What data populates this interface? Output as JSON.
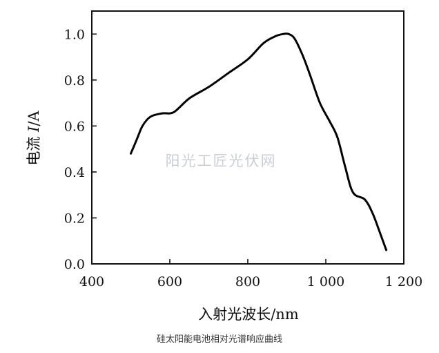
{
  "chart_data": {
    "type": "line",
    "xlabel_main": "入射光波长",
    "xlabel_unit": "/nm",
    "ylabel_main": "电流 ",
    "ylabel_var": "I",
    "ylabel_unit": "/A",
    "xlim": [
      400,
      1200
    ],
    "ylim": [
      0,
      1.1
    ],
    "x_ticks": [
      400,
      600,
      800,
      1000,
      1200
    ],
    "x_tick_labels": [
      "400",
      "600",
      "800",
      "1 000",
      "1 200"
    ],
    "y_ticks": [
      0.0,
      0.2,
      0.4,
      0.6,
      0.8,
      1.0
    ],
    "y_tick_labels": [
      "0.0",
      "0.2",
      "0.4",
      "0.6",
      "0.8",
      "1.0"
    ],
    "grid": false,
    "series": [
      {
        "color": "#000000",
        "points": [
          [
            500,
            0.48
          ],
          [
            515,
            0.54
          ],
          [
            530,
            0.6
          ],
          [
            550,
            0.64
          ],
          [
            580,
            0.655
          ],
          [
            610,
            0.66
          ],
          [
            650,
            0.72
          ],
          [
            700,
            0.77
          ],
          [
            750,
            0.83
          ],
          [
            800,
            0.89
          ],
          [
            840,
            0.96
          ],
          [
            870,
            0.99
          ],
          [
            890,
            1.0
          ],
          [
            905,
            1.0
          ],
          [
            920,
            0.98
          ],
          [
            940,
            0.91
          ],
          [
            960,
            0.82
          ],
          [
            985,
            0.7
          ],
          [
            1010,
            0.62
          ],
          [
            1030,
            0.55
          ],
          [
            1050,
            0.42
          ],
          [
            1070,
            0.31
          ],
          [
            1100,
            0.28
          ],
          [
            1120,
            0.22
          ],
          [
            1140,
            0.13
          ],
          [
            1155,
            0.06
          ]
        ]
      }
    ]
  },
  "watermark": "阳光工匠光伏网",
  "caption": "硅太阳能电池相对光谱响应曲线"
}
